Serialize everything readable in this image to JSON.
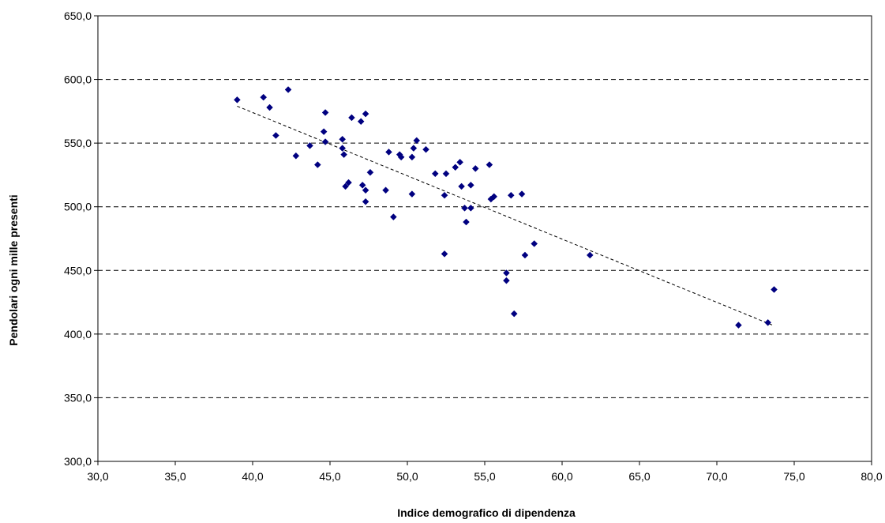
{
  "chart_data": {
    "type": "scatter",
    "title": "",
    "xlabel": "Indice demografico di dipendenza",
    "ylabel": "Pendolari ogni mille presenti",
    "xlim": [
      30,
      80
    ],
    "ylim": [
      300,
      650
    ],
    "x_ticks": [
      30,
      35,
      40,
      45,
      50,
      55,
      60,
      65,
      70,
      75,
      80
    ],
    "y_ticks": [
      300,
      350,
      400,
      450,
      500,
      550,
      600,
      650
    ],
    "x_tick_labels": [
      "30,0",
      "35,0",
      "40,0",
      "45,0",
      "50,0",
      "55,0",
      "60,0",
      "65,0",
      "70,0",
      "75,0",
      "80,0"
    ],
    "y_tick_labels": [
      "300,0",
      "350,0",
      "400,0",
      "450,0",
      "500,0",
      "550,0",
      "600,0",
      "650,0"
    ],
    "grid": "horizontal-dashed",
    "legend": "none",
    "marker_color": "#000080",
    "trendline": {
      "type": "linear",
      "style": "dashed",
      "from": [
        39.0,
        579.0
      ],
      "to": [
        73.6,
        407.0
      ]
    },
    "points": [
      [
        39.0,
        584
      ],
      [
        40.7,
        586
      ],
      [
        41.1,
        578
      ],
      [
        41.5,
        556
      ],
      [
        42.3,
        592
      ],
      [
        42.8,
        540
      ],
      [
        43.7,
        548
      ],
      [
        44.2,
        533
      ],
      [
        44.6,
        559
      ],
      [
        44.7,
        574
      ],
      [
        44.7,
        551
      ],
      [
        45.8,
        553
      ],
      [
        45.8,
        546
      ],
      [
        45.9,
        541
      ],
      [
        46.0,
        516
      ],
      [
        46.2,
        519
      ],
      [
        46.4,
        570
      ],
      [
        47.0,
        567
      ],
      [
        47.1,
        517
      ],
      [
        47.3,
        573
      ],
      [
        47.3,
        513
      ],
      [
        47.3,
        504
      ],
      [
        47.6,
        527
      ],
      [
        48.6,
        513
      ],
      [
        48.8,
        543
      ],
      [
        49.1,
        492
      ],
      [
        49.5,
        541
      ],
      [
        49.6,
        539
      ],
      [
        50.3,
        539
      ],
      [
        50.3,
        510
      ],
      [
        50.4,
        546
      ],
      [
        50.6,
        552
      ],
      [
        51.2,
        545
      ],
      [
        51.8,
        526
      ],
      [
        52.4,
        509
      ],
      [
        52.5,
        526
      ],
      [
        52.4,
        463
      ],
      [
        53.1,
        531
      ],
      [
        53.4,
        535
      ],
      [
        53.5,
        516
      ],
      [
        53.7,
        499
      ],
      [
        53.8,
        488
      ],
      [
        54.1,
        517
      ],
      [
        54.1,
        499
      ],
      [
        54.4,
        530
      ],
      [
        55.3,
        533
      ],
      [
        55.4,
        506
      ],
      [
        55.6,
        508
      ],
      [
        56.4,
        448
      ],
      [
        56.4,
        442
      ],
      [
        56.7,
        509
      ],
      [
        56.9,
        416
      ],
      [
        57.4,
        510
      ],
      [
        57.6,
        462
      ],
      [
        58.2,
        471
      ],
      [
        61.8,
        462
      ],
      [
        71.4,
        407
      ],
      [
        73.3,
        409
      ],
      [
        73.7,
        435
      ]
    ]
  }
}
